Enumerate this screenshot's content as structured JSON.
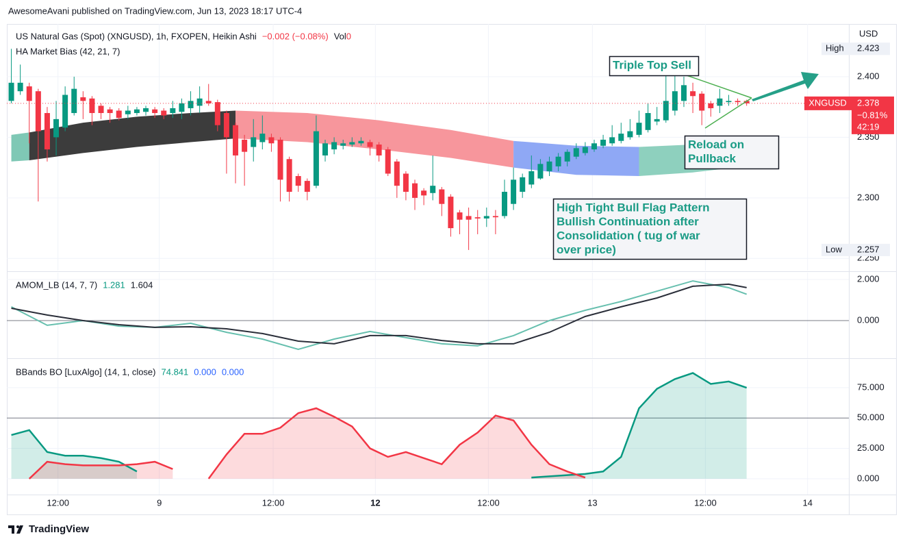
{
  "header": {
    "published": "AwesomeAvani published on TradingView.com, Jun 13, 2023 18:17 UTC-4"
  },
  "footer": "TradingView",
  "annotations": [
    {
      "lines": [
        "Triple Top Sell"
      ]
    },
    {
      "lines": [
        "Reload on",
        "Pullback"
      ]
    },
    {
      "lines": [
        "High Tight Bull Flag Pattern",
        "Bullish Continuation after",
        "Consolidation ( tug of war",
        "over price)"
      ]
    }
  ],
  "chart_data": [
    {
      "type": "candlestick",
      "title": "US Natural Gas (Spot) (XNGUSD), 1h, FXOPEN, Heikin Ashi",
      "change": "−0.002 (−0.08%)",
      "volume_label": "Vol",
      "volume": 0,
      "up_color": "#089981",
      "down_color": "#f23645",
      "open": [
        2.38,
        2.388,
        2.392,
        2.388,
        2.37,
        2.35,
        2.358,
        2.37,
        2.383,
        2.382,
        2.376,
        2.373,
        2.372,
        2.369,
        2.37,
        2.371,
        2.373,
        2.372,
        2.37,
        2.371,
        2.374,
        2.376,
        2.38,
        2.379,
        2.37,
        2.36,
        2.348,
        2.342,
        2.346,
        2.35,
        2.348,
        2.332,
        2.318,
        2.314,
        2.31,
        2.335,
        2.34,
        2.343,
        2.344,
        2.345,
        2.346,
        2.344,
        2.34,
        2.33,
        2.32,
        2.312,
        2.306,
        2.304,
        2.307,
        2.301,
        2.288,
        2.285,
        2.284,
        2.283,
        2.285,
        2.285,
        2.295,
        2.305,
        2.311,
        2.316,
        2.322,
        2.326,
        2.33,
        2.334,
        2.337,
        2.34,
        2.343,
        2.345,
        2.347,
        2.35,
        2.352,
        2.356,
        2.363,
        2.364,
        2.372,
        2.38,
        2.388,
        2.386,
        2.378,
        2.376,
        2.379,
        2.38,
        2.38
      ],
      "high": [
        2.423,
        2.41,
        2.395,
        2.39,
        2.375,
        2.38,
        2.392,
        2.4,
        2.388,
        2.384,
        2.378,
        2.375,
        2.374,
        2.376,
        2.375,
        2.376,
        2.375,
        2.374,
        2.38,
        2.382,
        2.388,
        2.392,
        2.394,
        2.381,
        2.372,
        2.362,
        2.352,
        2.365,
        2.368,
        2.353,
        2.35,
        2.334,
        2.32,
        2.316,
        2.368,
        2.348,
        2.35,
        2.348,
        2.35,
        2.35,
        2.348,
        2.346,
        2.342,
        2.332,
        2.322,
        2.315,
        2.308,
        2.335,
        2.309,
        2.303,
        2.29,
        2.292,
        2.29,
        2.292,
        2.29,
        2.315,
        2.325,
        2.32,
        2.335,
        2.332,
        2.334,
        2.337,
        2.34,
        2.345,
        2.346,
        2.348,
        2.352,
        2.36,
        2.362,
        2.365,
        2.372,
        2.378,
        2.375,
        2.408,
        2.41,
        2.4,
        2.395,
        2.388,
        2.38,
        2.39,
        2.385,
        2.382,
        2.381
      ],
      "low": [
        2.378,
        2.385,
        2.345,
        2.297,
        2.33,
        2.335,
        2.355,
        2.368,
        2.365,
        2.36,
        2.365,
        2.362,
        2.364,
        2.365,
        2.368,
        2.368,
        2.366,
        2.365,
        2.366,
        2.365,
        2.368,
        2.37,
        2.376,
        2.355,
        2.32,
        2.312,
        2.31,
        2.33,
        2.34,
        2.338,
        2.297,
        2.297,
        2.305,
        2.298,
        2.308,
        2.33,
        2.336,
        2.34,
        2.342,
        2.343,
        2.335,
        2.33,
        2.318,
        2.3,
        2.298,
        2.29,
        2.294,
        2.298,
        2.285,
        2.268,
        2.27,
        2.257,
        2.27,
        2.276,
        2.27,
        2.283,
        2.29,
        2.3,
        2.308,
        2.315,
        2.318,
        2.322,
        2.326,
        2.332,
        2.335,
        2.338,
        2.341,
        2.343,
        2.345,
        2.348,
        2.35,
        2.354,
        2.36,
        2.362,
        2.368,
        2.375,
        2.37,
        2.36,
        2.367,
        2.37,
        2.376,
        2.376,
        2.376
      ],
      "close": [
        2.395,
        2.395,
        2.38,
        2.355,
        2.34,
        2.365,
        2.385,
        2.39,
        2.38,
        2.37,
        2.37,
        2.37,
        2.366,
        2.372,
        2.373,
        2.374,
        2.37,
        2.368,
        2.374,
        2.378,
        2.38,
        2.382,
        2.378,
        2.36,
        2.35,
        2.335,
        2.338,
        2.35,
        2.353,
        2.345,
        2.315,
        2.305,
        2.31,
        2.305,
        2.355,
        2.345,
        2.346,
        2.345,
        2.346,
        2.347,
        2.342,
        2.335,
        2.32,
        2.31,
        2.305,
        2.3,
        2.302,
        2.31,
        2.295,
        2.275,
        2.282,
        2.282,
        2.283,
        2.285,
        2.284,
        2.305,
        2.315,
        2.317,
        2.322,
        2.328,
        2.33,
        2.334,
        2.338,
        2.341,
        2.342,
        2.345,
        2.348,
        2.35,
        2.353,
        2.355,
        2.362,
        2.37,
        2.365,
        2.38,
        2.388,
        2.393,
        2.384,
        2.372,
        2.374,
        2.382,
        2.38,
        2.379,
        2.378
      ],
      "ylim": [
        2.24,
        2.4435
      ],
      "yticks": [
        {
          "value": 2.25,
          "label": "2.250"
        },
        {
          "value": 2.3,
          "label": "2.300"
        },
        {
          "value": 2.35,
          "label": "2.350"
        },
        {
          "value": 2.4,
          "label": "2.400"
        }
      ],
      "y_unit": "USD",
      "high_mark": {
        "label": "High",
        "value": 2.423
      },
      "low_mark": {
        "label": "Low",
        "value": 2.257
      },
      "last": {
        "symbol": "XNGUSD",
        "value": 2.378,
        "change": "−0.81%",
        "countdown": "42:19",
        "color": "#f23645"
      },
      "bias": {
        "name": "HA Market Bias (42, 21, 7)",
        "segments": [
          {
            "color": "#7fc8b5",
            "x": [
              0,
              2
            ],
            "upper": [
              2.352,
              2.354
            ],
            "lower": [
              2.33,
              2.331
            ]
          },
          {
            "color": "#3c3c3c",
            "x": [
              2,
              8,
              14,
              20,
              25
            ],
            "upper": [
              2.354,
              2.362,
              2.367,
              2.37,
              2.372
            ],
            "lower": [
              2.331,
              2.337,
              2.342,
              2.346,
              2.349
            ]
          },
          {
            "color": "#f7969c",
            "x": [
              25,
              33,
              41,
              49,
              56
            ],
            "upper": [
              2.372,
              2.37,
              2.364,
              2.356,
              2.347
            ],
            "lower": [
              2.349,
              2.346,
              2.34,
              2.333,
              2.325
            ]
          },
          {
            "color": "#8fa8f5",
            "x": [
              56,
              63,
              70
            ],
            "upper": [
              2.347,
              2.343,
              2.342
            ],
            "lower": [
              2.325,
              2.319,
              2.318
            ]
          },
          {
            "color": "#8ed0be",
            "x": [
              70,
              76,
              83
            ],
            "upper": [
              2.342,
              2.344,
              2.35
            ],
            "lower": [
              2.318,
              2.321,
              2.327
            ]
          }
        ]
      }
    },
    {
      "type": "line",
      "title": "AMOM_LB (14, 7, 7)",
      "legend_values": [
        "1.281",
        "1.604"
      ],
      "legend_colors": [
        "#089981",
        "#131722"
      ],
      "x": [
        0,
        4,
        8,
        12,
        16,
        20,
        24,
        28,
        32,
        36,
        40,
        44,
        48,
        52,
        56,
        60,
        64,
        68,
        72,
        76,
        80,
        82
      ],
      "series": [
        {
          "color": "#66bfae",
          "values": [
            0.67,
            -0.23,
            0,
            -0.27,
            -0.33,
            -0.13,
            -0.57,
            -0.9,
            -1.4,
            -0.9,
            -0.53,
            -0.83,
            -1.13,
            -1.23,
            -0.73,
            0,
            0.5,
            0.93,
            1.43,
            1.93,
            1.6,
            1.281
          ]
        },
        {
          "color": "#2a2e39",
          "values": [
            0.6,
            0.27,
            0,
            -0.2,
            -0.33,
            -0.3,
            -0.4,
            -0.63,
            -1.0,
            -1.13,
            -0.73,
            -0.73,
            -0.97,
            -1.13,
            -1.13,
            -0.57,
            0.2,
            0.67,
            1.1,
            1.67,
            1.77,
            1.604
          ]
        }
      ],
      "ylim": [
        -1.833,
        2.333
      ],
      "yticks": [
        {
          "value": 2,
          "label": "2.000"
        },
        {
          "value": 0,
          "label": "0.000"
        }
      ],
      "hlines": [
        0
      ]
    },
    {
      "type": "line",
      "title": "BBands BO [LuxAlgo] (14, 1, close)",
      "legend_values": [
        "74.841",
        "0.000",
        "0.000"
      ],
      "legend_colors": [
        "#089981",
        "#2962ff",
        "#2962ff"
      ],
      "fill": true,
      "x": [
        0,
        2,
        4,
        6,
        8,
        10,
        12,
        14,
        16,
        18,
        20,
        22,
        24,
        26,
        28,
        30,
        32,
        34,
        36,
        38,
        40,
        42,
        44,
        46,
        48,
        50,
        52,
        54,
        56,
        58,
        60,
        62,
        64,
        66,
        68,
        70,
        72,
        74,
        76,
        78,
        80,
        82
      ],
      "series": [
        {
          "color": "#089981",
          "values": [
            36,
            40,
            22,
            19,
            19,
            17,
            14,
            6,
            null,
            null,
            null,
            null,
            null,
            null,
            null,
            null,
            null,
            null,
            null,
            null,
            null,
            null,
            null,
            null,
            null,
            null,
            null,
            null,
            null,
            1,
            2,
            3,
            4,
            6,
            18,
            58,
            74,
            82,
            87,
            78,
            80,
            74.841
          ]
        },
        {
          "color": "#f23645",
          "values": [
            null,
            0,
            14,
            12,
            11,
            11,
            11,
            12,
            14,
            8,
            null,
            0,
            20,
            37,
            37,
            42,
            54,
            58,
            51,
            43,
            25,
            18,
            22,
            17,
            12,
            28,
            38,
            52,
            48,
            28,
            12,
            6,
            1,
            null,
            null,
            null,
            null,
            null,
            null,
            null,
            null,
            null
          ]
        }
      ],
      "ylim": [
        -13,
        98
      ],
      "yticks": [
        {
          "value": 0,
          "label": "0.000"
        },
        {
          "value": 25,
          "label": "25.000"
        },
        {
          "value": 50,
          "label": "50.000"
        },
        {
          "value": 75,
          "label": "75.000"
        }
      ],
      "hlines": [
        50
      ],
      "xlim": [
        -0.5,
        93.4
      ],
      "xticks": [
        {
          "value": 5.2,
          "label": "12:00"
        },
        {
          "value": 16.5,
          "label": "9"
        },
        {
          "value": 29.2,
          "label": "12:00"
        },
        {
          "value": 40.6,
          "label": "12"
        },
        {
          "value": 53.2,
          "label": "12:00"
        },
        {
          "value": 64.8,
          "label": "13"
        },
        {
          "value": 77.4,
          "label": "12:00"
        },
        {
          "value": 88.8,
          "label": "14"
        }
      ]
    }
  ]
}
